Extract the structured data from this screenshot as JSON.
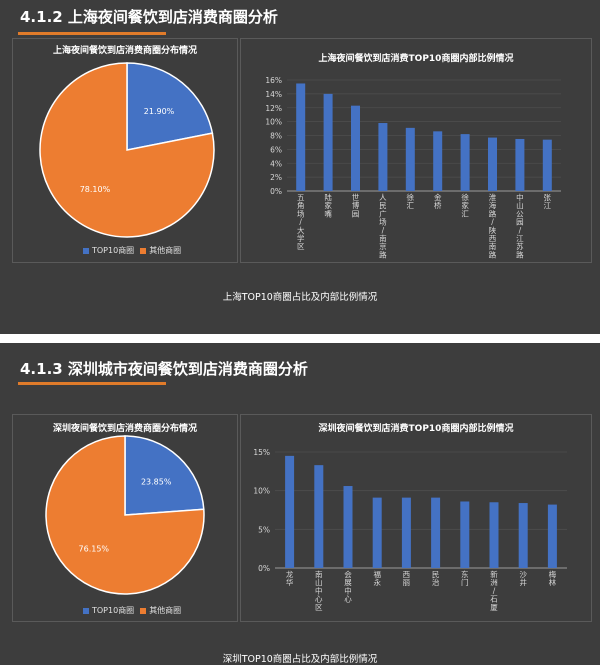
{
  "colors": {
    "top10": "#4472c4",
    "other": "#ed7d31",
    "panel": "#3d3d3d",
    "accent": "#e07b2a"
  },
  "shanghai": {
    "section_title": "4.1.2  上海夜间餐饮到店消费商圈分析",
    "caption": "上海TOP10商圈占比及内部比例情况",
    "legend": [
      "TOP10商圈",
      "其他商圈"
    ]
  },
  "shenzhen": {
    "section_title": "4.1.3 深圳城市夜间餐饮到店消费商圈分析",
    "caption": "深圳TOP10商圈占比及内部比例情况",
    "legend": [
      "TOP10商圈",
      "其他商圈"
    ]
  },
  "chart_data": [
    {
      "type": "pie",
      "title": "上海夜间餐饮到店消费商圈分布情况",
      "labels": [
        "TOP10商圈",
        "其他商圈"
      ],
      "values": [
        21.9,
        78.1
      ],
      "value_labels": [
        "21.90%",
        "78.10%"
      ]
    },
    {
      "type": "bar",
      "title": "上海夜间餐饮到店消费TOP10商圈内部比例情况",
      "categories": [
        "五角场/大学区",
        "陆家嘴",
        "世博园",
        "人民广场/南京路",
        "徐汇",
        "金桥",
        "徐家汇",
        "淮海路/陕西南路",
        "中山公园/江苏路",
        "张江"
      ],
      "values": [
        15.5,
        14.0,
        12.3,
        9.8,
        9.1,
        8.6,
        8.2,
        7.7,
        7.5,
        7.4
      ],
      "ylim": [
        0,
        16
      ],
      "yticks": [
        "0%",
        "2%",
        "4%",
        "6%",
        "8%",
        "10%",
        "12%",
        "14%",
        "16%"
      ]
    },
    {
      "type": "pie",
      "title": "深圳夜间餐饮到店消费商圈分布情况",
      "labels": [
        "TOP10商圈",
        "其他商圈"
      ],
      "values": [
        23.85,
        76.15
      ],
      "value_labels": [
        "23.85%",
        "76.15%"
      ]
    },
    {
      "type": "bar",
      "title": "深圳夜间餐饮到店消费TOP10商圈内部比例情况",
      "categories": [
        "龙华",
        "南山中心区",
        "会展中心",
        "福永",
        "西丽",
        "民治",
        "东门",
        "新洲/石厦",
        "沙井",
        "梅林"
      ],
      "values": [
        14.5,
        13.3,
        10.6,
        9.1,
        9.1,
        9.1,
        8.6,
        8.5,
        8.4,
        8.2
      ],
      "ylim": [
        0,
        15
      ],
      "yticks": [
        "0%",
        "5%",
        "10%",
        "15%"
      ]
    }
  ]
}
